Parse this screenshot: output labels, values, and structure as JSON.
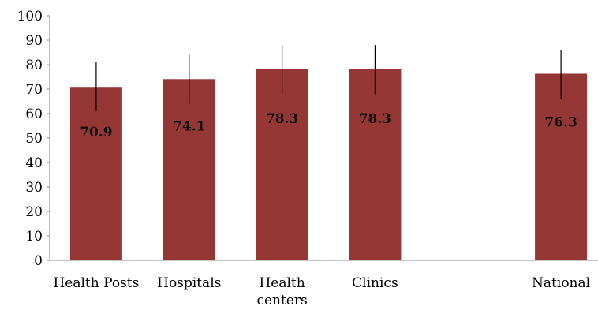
{
  "chart_data": {
    "type": "bar",
    "categories": [
      {
        "lines": [
          "Health Posts"
        ]
      },
      {
        "lines": [
          "Hospitals"
        ]
      },
      {
        "lines": [
          "Health",
          "centers"
        ]
      },
      {
        "lines": [
          "Clinics"
        ]
      },
      {
        "lines": [
          ""
        ]
      },
      {
        "lines": [
          "National"
        ]
      }
    ],
    "values": [
      70.9,
      74.1,
      78.3,
      78.3,
      null,
      76.3
    ],
    "data_labels": [
      "70.9",
      "74.1",
      "78.3",
      "78.3",
      "",
      "76.3"
    ],
    "error_bars": [
      [
        61,
        81
      ],
      [
        64,
        84
      ],
      [
        68,
        88
      ],
      [
        68,
        88
      ],
      null,
      [
        66,
        86
      ]
    ],
    "ylim": [
      0,
      100
    ],
    "yticks": [
      "0",
      "10",
      "20",
      "30",
      "40",
      "50",
      "60",
      "70",
      "80",
      "90",
      "100"
    ],
    "title": "",
    "xlabel": "",
    "ylabel": "",
    "grid": false,
    "bar_color": "#953735"
  }
}
